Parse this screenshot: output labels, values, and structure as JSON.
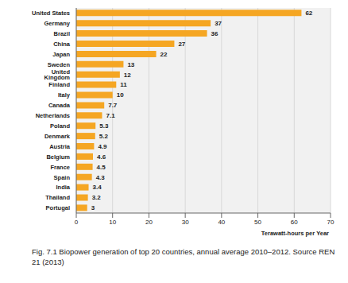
{
  "chart_data": {
    "type": "bar",
    "orientation": "horizontal",
    "title": "Fig. 7.1 Biopower generation of top 20 countries, annual average 2010–2012. Source REN 21 (2013)",
    "x_label": "Terawatt-hours per Year",
    "categories": [
      "United States",
      "Germany",
      "Brazil",
      "China",
      "Japan",
      "Sweden",
      "United Kingdom",
      "Finland",
      "Italy",
      "Canada",
      "Netherlands",
      "Poland",
      "Denmark",
      "Austria",
      "Belgium",
      "France",
      "Spain",
      "India",
      "Thailand",
      "Portugal"
    ],
    "values": [
      62,
      37,
      36,
      27,
      22,
      13,
      12,
      11,
      10,
      7.7,
      7.1,
      5.3,
      5.2,
      4.9,
      4.6,
      4.5,
      4.3,
      3.4,
      3.2,
      3.0
    ],
    "color": "#f5a623",
    "xlim": [
      0,
      70
    ],
    "xticks": [
      0,
      10,
      20,
      30,
      40,
      50,
      60,
      70
    ],
    "grid": true,
    "data_labels": true
  }
}
